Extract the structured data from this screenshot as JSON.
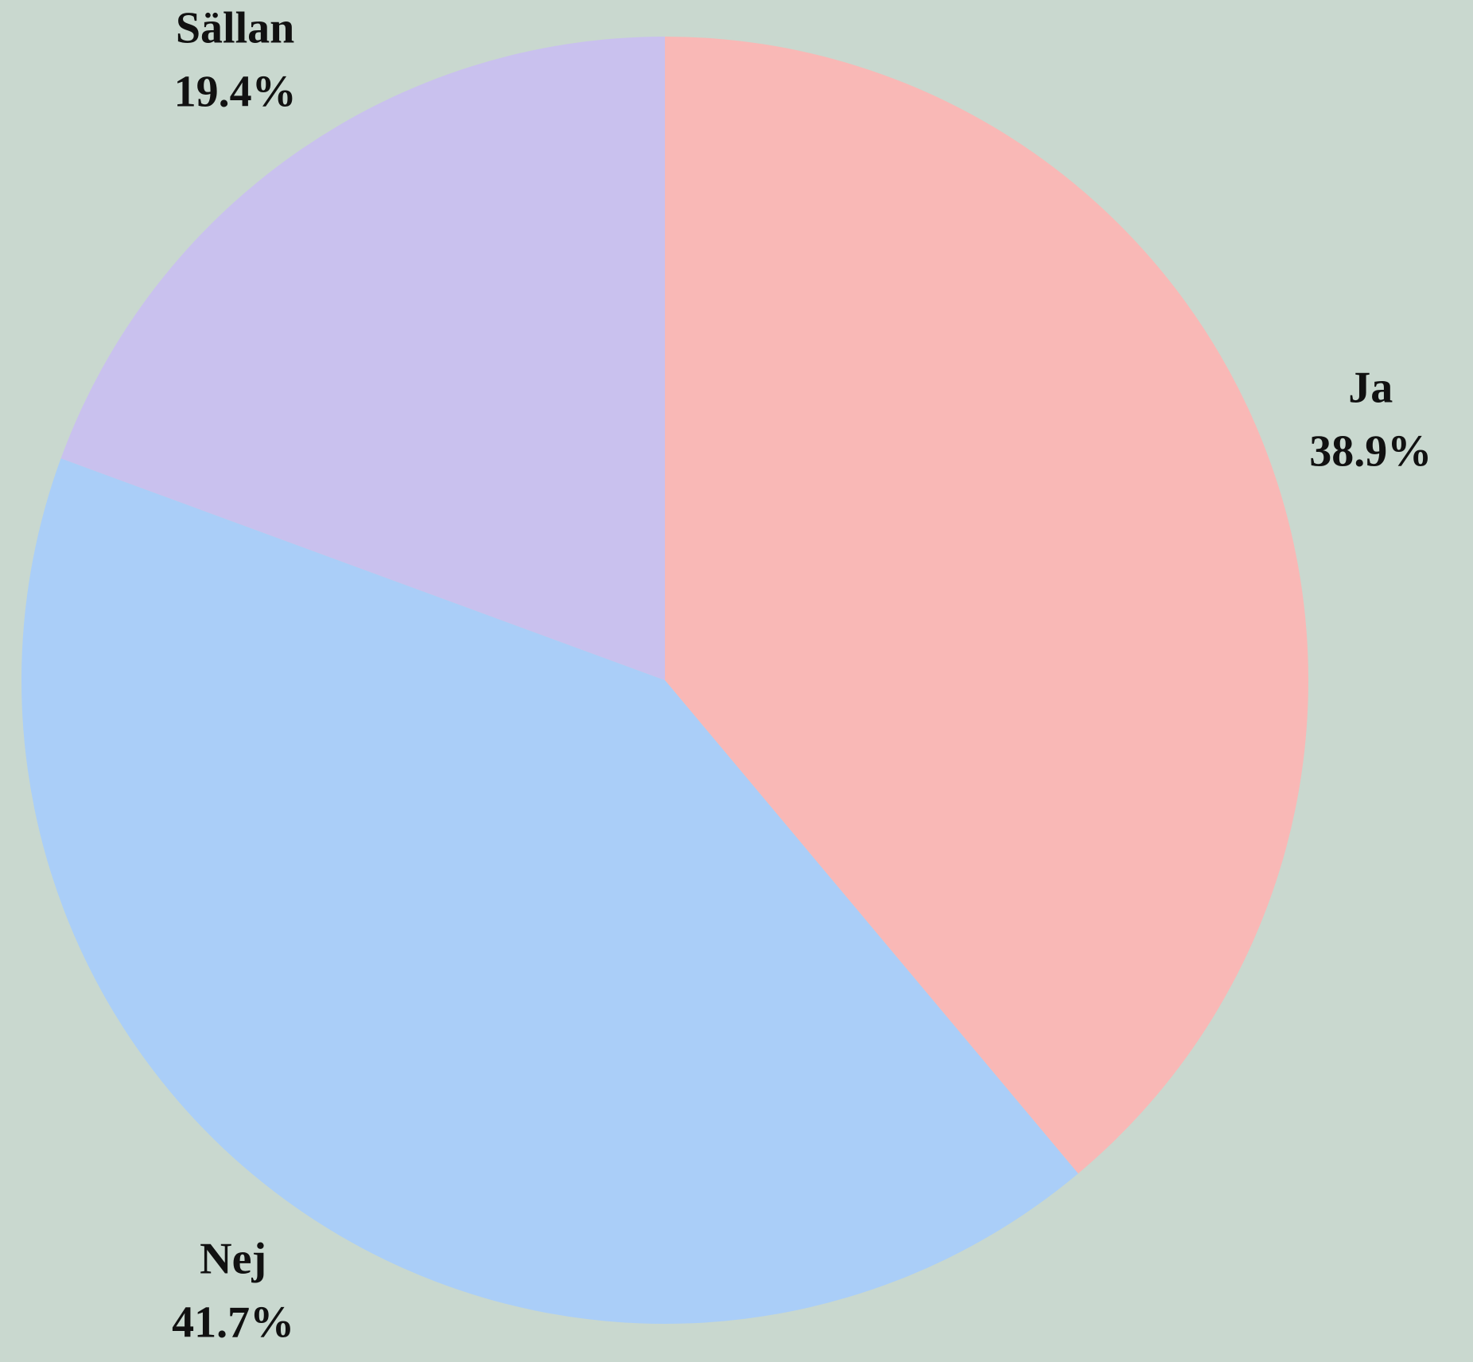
{
  "chart_data": {
    "type": "pie",
    "categories": [
      "Ja",
      "Nej",
      "Sällan"
    ],
    "values": [
      38.9,
      41.7,
      19.4
    ],
    "value_labels": [
      "38.9%",
      "41.7%",
      "19.4%"
    ],
    "colors": [
      "#f9b8b6",
      "#aacef8",
      "#c9c1ee"
    ]
  }
}
